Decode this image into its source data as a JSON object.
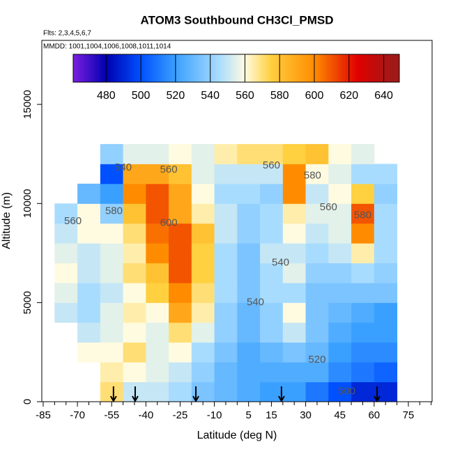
{
  "chart_data": {
    "type": "heatmap",
    "title": "ATOM3 Southbound CH3Cl_PMSD",
    "annotations": [
      "Flts: 2,3,4,5,6,7",
      "MMDD: 1001,1004,1006,1008,1011,1014"
    ],
    "xlabel": "Latitude (deg N)",
    "ylabel": "Altitude (m)",
    "xlim": [
      -85.6,
      85.4
    ],
    "ylim": [
      0,
      18230
    ],
    "xticks": [
      -85,
      -70,
      -55,
      -40,
      -25,
      -10,
      5,
      15,
      30,
      45,
      60,
      75
    ],
    "xminorticks": [
      -80,
      -75,
      -65,
      -60,
      -50,
      -45,
      -35,
      -30,
      -20,
      -15,
      -5,
      0,
      10,
      20,
      25,
      35,
      40,
      50,
      55,
      65,
      70,
      80,
      85
    ],
    "yticks": [
      0,
      5000,
      10000,
      15000
    ],
    "clim": [
      461,
      649
    ],
    "cticks": [
      480,
      500,
      520,
      540,
      560,
      580,
      600,
      620,
      640
    ],
    "colorscale": [
      [
        460,
        "#7b1fe0"
      ],
      [
        480,
        "#0000b0"
      ],
      [
        500,
        "#0050ff"
      ],
      [
        520,
        "#3aa0ff"
      ],
      [
        545,
        "#a8dcff"
      ],
      [
        560,
        "#fffbe0"
      ],
      [
        575,
        "#ffd040"
      ],
      [
        600,
        "#ff8c00"
      ],
      [
        625,
        "#e00000"
      ],
      [
        645,
        "#a01818"
      ]
    ],
    "x": [
      -75,
      -65,
      -55,
      -45,
      -35,
      -25,
      -15,
      -5,
      5,
      15,
      25,
      35,
      45,
      55,
      65
    ],
    "y": [
      500,
      1500,
      2500,
      3500,
      4500,
      5500,
      6500,
      7500,
      8500,
      9500,
      10500,
      11500,
      12500
    ],
    "cell_width": 10,
    "cell_height": 1000,
    "values": [
      [
        null,
        null,
        570,
        550,
        550,
        545,
        535,
        530,
        525,
        520,
        520,
        510,
        500,
        490,
        490
      ],
      [
        null,
        null,
        565,
        560,
        555,
        550,
        540,
        530,
        525,
        525,
        525,
        525,
        515,
        510,
        505
      ],
      [
        null,
        560,
        560,
        570,
        555,
        560,
        545,
        535,
        525,
        530,
        535,
        530,
        520,
        515,
        515
      ],
      [
        null,
        550,
        555,
        560,
        555,
        570,
        555,
        540,
        530,
        540,
        550,
        535,
        525,
        520,
        520
      ],
      [
        550,
        545,
        555,
        565,
        560,
        590,
        565,
        540,
        530,
        540,
        560,
        535,
        530,
        525,
        520
      ],
      [
        555,
        545,
        550,
        560,
        575,
        600,
        570,
        545,
        535,
        545,
        545,
        535,
        535,
        535,
        535
      ],
      [
        560,
        550,
        555,
        570,
        580,
        610,
        575,
        545,
        535,
        545,
        555,
        540,
        540,
        545,
        540
      ],
      [
        555,
        550,
        555,
        565,
        600,
        610,
        575,
        545,
        535,
        550,
        550,
        545,
        550,
        565,
        545
      ],
      [
        550,
        560,
        560,
        570,
        605,
        610,
        580,
        550,
        540,
        545,
        560,
        550,
        555,
        600,
        545
      ],
      [
        545,
        560,
        540,
        580,
        610,
        590,
        565,
        550,
        540,
        545,
        565,
        555,
        555,
        610,
        545
      ],
      [
        null,
        530,
        520,
        600,
        610,
        590,
        560,
        545,
        545,
        540,
        600,
        550,
        560,
        575,
        540
      ],
      [
        null,
        null,
        500,
        590,
        590,
        580,
        555,
        550,
        550,
        550,
        600,
        560,
        555,
        545,
        545
      ],
      [
        null,
        null,
        540,
        555,
        555,
        560,
        555,
        565,
        570,
        570,
        575,
        580,
        560,
        555,
        null
      ]
    ],
    "contour_labels": [
      {
        "text": "540",
        "x": -50,
        "y": 11800
      },
      {
        "text": "560",
        "x": -30,
        "y": 11700
      },
      {
        "text": "560",
        "x": 15,
        "y": 11900
      },
      {
        "text": "580",
        "x": 33,
        "y": 11400
      },
      {
        "text": "560",
        "x": 40,
        "y": 9800
      },
      {
        "text": "580",
        "x": 55,
        "y": 9400
      },
      {
        "text": "560",
        "x": -72,
        "y": 9100
      },
      {
        "text": "580",
        "x": -54,
        "y": 9600
      },
      {
        "text": "600",
        "x": -30,
        "y": 9000
      },
      {
        "text": "540",
        "x": 19,
        "y": 7000
      },
      {
        "text": "540",
        "x": 8,
        "y": 5000
      },
      {
        "text": "520",
        "x": 35,
        "y": 2100
      },
      {
        "text": "500",
        "x": 48,
        "y": 500
      }
    ],
    "profile_markers": [
      -54.2,
      -44.7,
      -18.1,
      19.4,
      61.3
    ]
  }
}
